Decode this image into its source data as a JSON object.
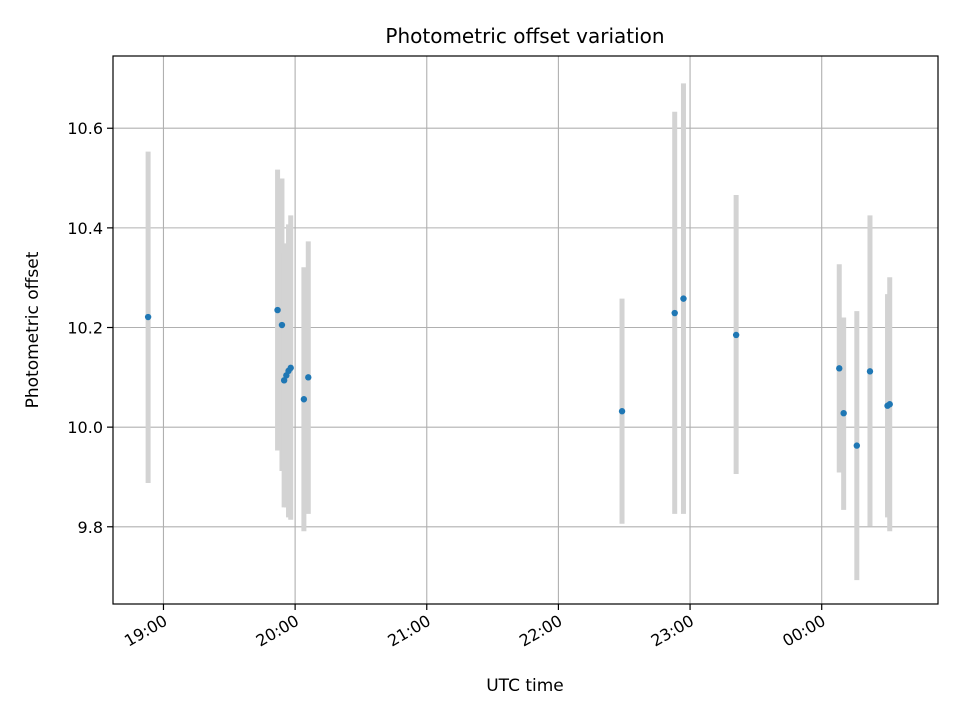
{
  "chart_data": {
    "type": "scatter",
    "title": "Photometric offset variation",
    "xlabel": "UTC time",
    "ylabel": "Photometric offset",
    "x_axis": {
      "kind": "time",
      "range": [
        "18:37",
        "00:53"
      ],
      "ticks": [
        "19:00",
        "20:00",
        "21:00",
        "22:00",
        "23:00",
        "00:00"
      ]
    },
    "y_axis": {
      "range": [
        9.645,
        10.745
      ],
      "ticks": [
        9.8,
        10.0,
        10.2,
        10.4,
        10.6
      ]
    },
    "grid": true,
    "colors": {
      "point": "#1f77b4",
      "errorbar": "#d3d3d3",
      "grid": "#b0b0b0",
      "axis": "#000000"
    },
    "points": [
      {
        "time": "18:53",
        "y": 10.221,
        "ylow": 9.888,
        "yhigh": 10.553
      },
      {
        "time": "19:52",
        "y": 10.235,
        "ylow": 9.953,
        "yhigh": 10.517
      },
      {
        "time": "19:54",
        "y": 10.205,
        "ylow": 9.912,
        "yhigh": 10.499
      },
      {
        "time": "19:55",
        "y": 10.094,
        "ylow": 9.839,
        "yhigh": 10.349
      },
      {
        "time": "19:56",
        "y": 10.104,
        "ylow": 9.839,
        "yhigh": 10.369
      },
      {
        "time": "19:57",
        "y": 10.113,
        "ylow": 9.819,
        "yhigh": 10.407
      },
      {
        "time": "19:58",
        "y": 10.119,
        "ylow": 9.814,
        "yhigh": 10.425
      },
      {
        "time": "20:04",
        "y": 10.056,
        "ylow": 9.791,
        "yhigh": 10.321
      },
      {
        "time": "20:06",
        "y": 10.1,
        "ylow": 9.826,
        "yhigh": 10.373
      },
      {
        "time": "22:29",
        "y": 10.032,
        "ylow": 9.806,
        "yhigh": 10.258
      },
      {
        "time": "22:53",
        "y": 10.229,
        "ylow": 9.826,
        "yhigh": 10.633
      },
      {
        "time": "22:57",
        "y": 10.258,
        "ylow": 9.826,
        "yhigh": 10.69
      },
      {
        "time": "23:21",
        "y": 10.185,
        "ylow": 9.906,
        "yhigh": 10.466
      },
      {
        "time": "00:08",
        "y": 10.118,
        "ylow": 9.909,
        "yhigh": 10.327
      },
      {
        "time": "00:10",
        "y": 10.028,
        "ylow": 9.834,
        "yhigh": 10.22
      },
      {
        "time": "00:16",
        "y": 9.963,
        "ylow": 9.693,
        "yhigh": 10.233
      },
      {
        "time": "00:22",
        "y": 10.112,
        "ylow": 9.801,
        "yhigh": 10.425
      },
      {
        "time": "00:30",
        "y": 10.043,
        "ylow": 9.819,
        "yhigh": 10.267
      },
      {
        "time": "00:31",
        "y": 10.046,
        "ylow": 9.791,
        "yhigh": 10.301
      }
    ]
  }
}
